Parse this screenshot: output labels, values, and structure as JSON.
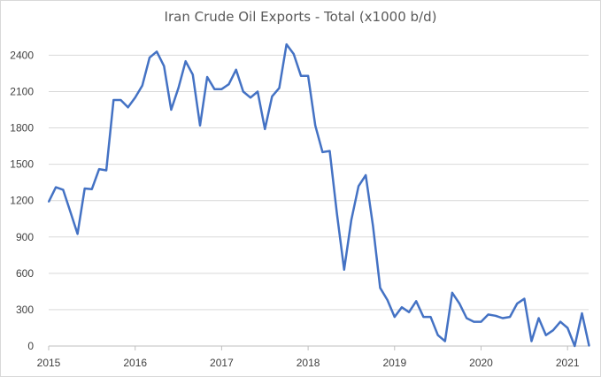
{
  "chart_data": {
    "type": "line",
    "title": "Iran Crude Oil Exports - Total (x1000 b/d)",
    "xlabel": "",
    "ylabel": "",
    "ylim": [
      0,
      2600
    ],
    "yticks": [
      0,
      300,
      600,
      900,
      1200,
      1500,
      1800,
      2100,
      2400
    ],
    "xlim": [
      2015,
      2021.333
    ],
    "xticks": [
      2015,
      2016,
      2017,
      2018,
      2019,
      2020,
      2021
    ],
    "grid": "horizontal",
    "legend": "none",
    "line_color": "#4472c4",
    "series": [
      {
        "values": [
          1190,
          1310,
          1290,
          1110,
          925,
          1300,
          1295,
          1460,
          1450,
          2030,
          2030,
          1970,
          2050,
          2150,
          2380,
          2430,
          2310,
          1950,
          2130,
          2350,
          2240,
          1820,
          2220,
          2120,
          2120,
          2160,
          2280,
          2100,
          2050,
          2100,
          1790,
          2060,
          2130,
          2490,
          2410,
          2230,
          2230,
          1820,
          1600,
          1610,
          1090,
          630,
          1040,
          1320,
          1410,
          990,
          480,
          380,
          240,
          320,
          280,
          370,
          240,
          240,
          90,
          40,
          440,
          350,
          230,
          200,
          200,
          260,
          250,
          230,
          240,
          350,
          390,
          40,
          230,
          90,
          130,
          200,
          150,
          0,
          270,
          0
        ]
      }
    ]
  }
}
